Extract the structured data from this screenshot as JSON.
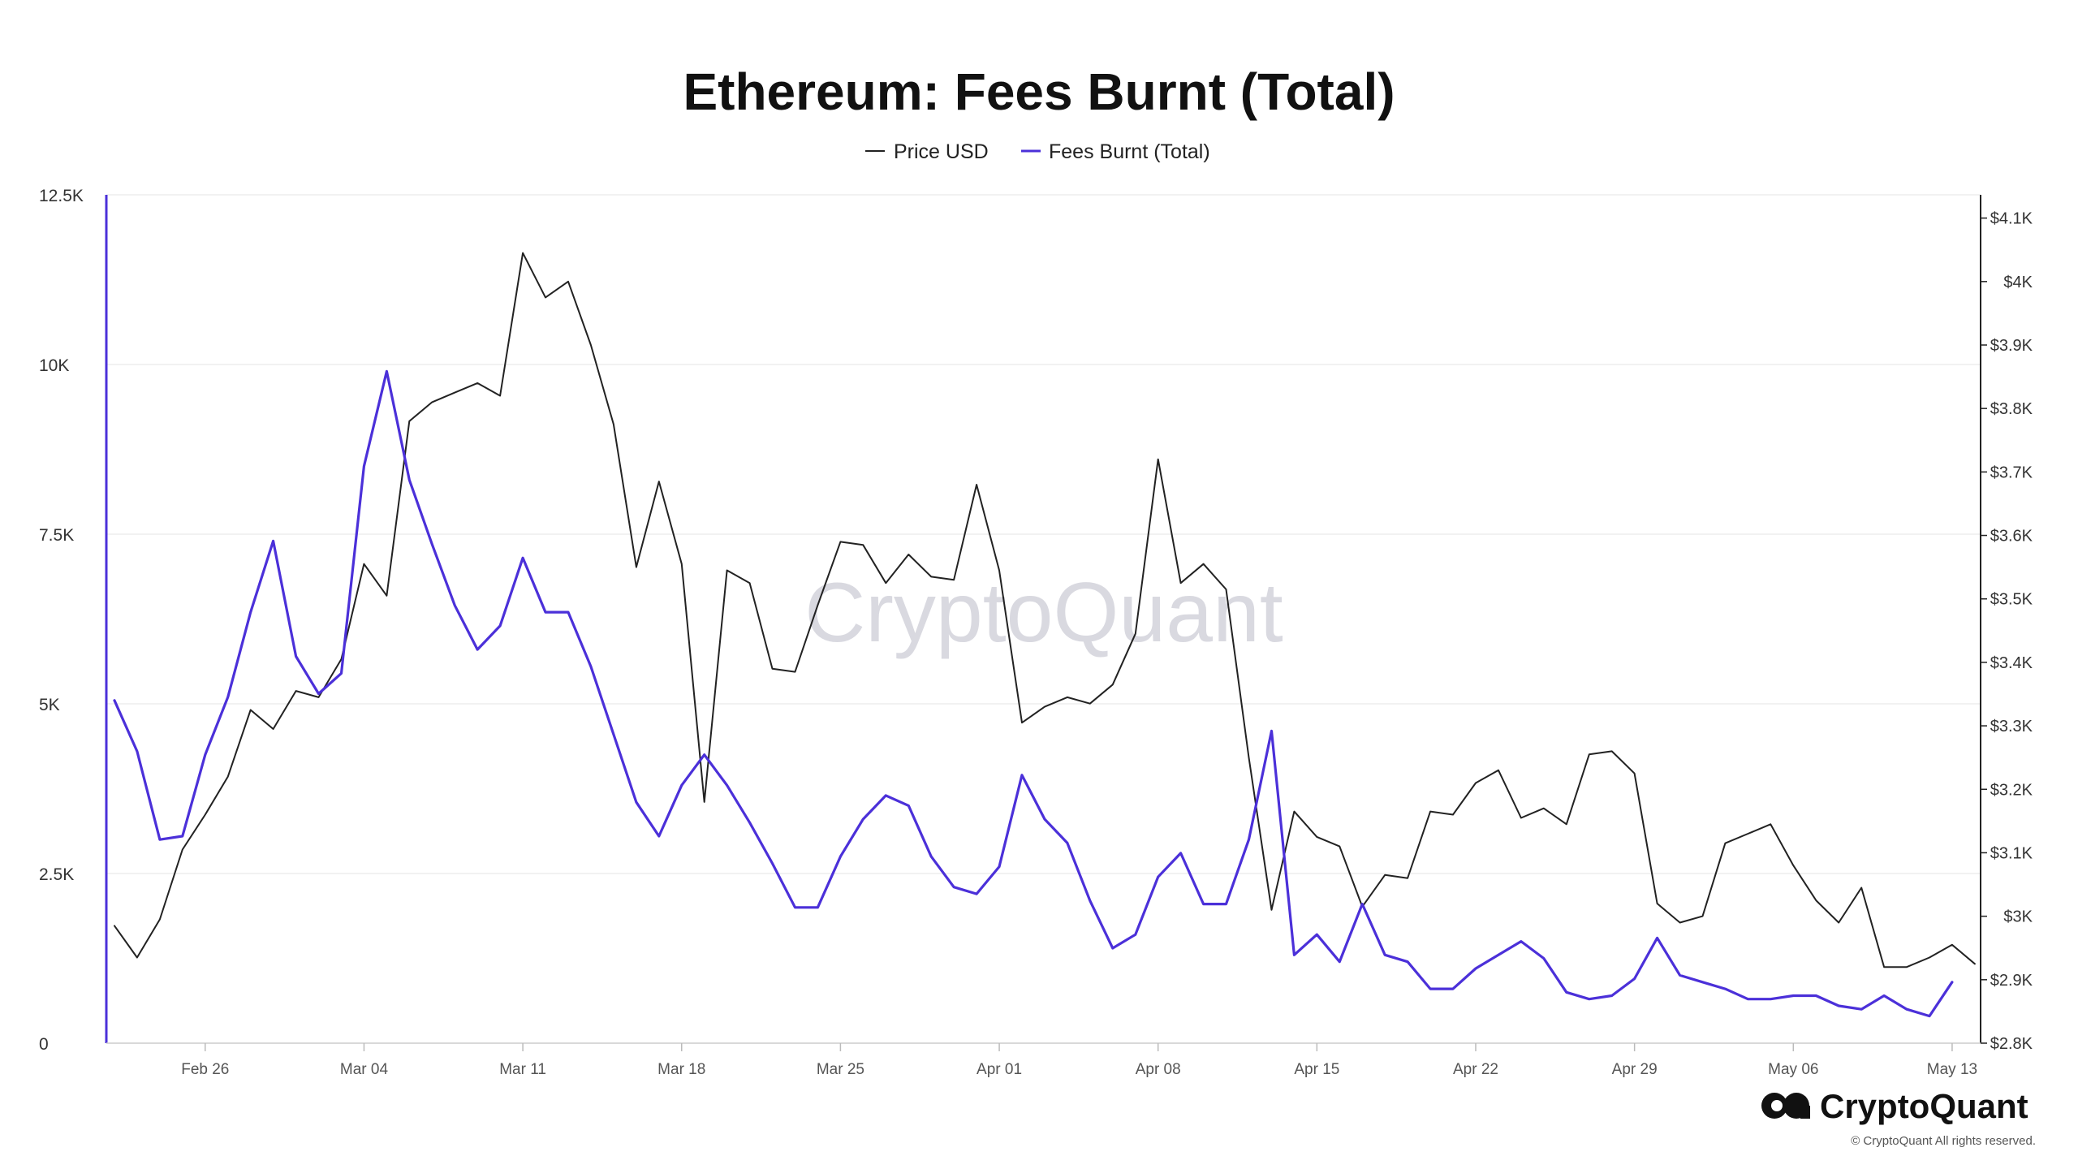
{
  "header": {
    "title": "Ethereum: Fees Burnt (Total)"
  },
  "watermark": "CryptoQuant",
  "brand": {
    "name": "CryptoQuant",
    "copyright": "© CryptoQuant All rights reserved."
  },
  "colors": {
    "price": "#222222",
    "fees": "#4b30d9",
    "grid": "#eeeeee"
  },
  "chart_data": {
    "type": "line",
    "title": "Ethereum: Fees Burnt (Total)",
    "legend": {
      "position": "top-center",
      "entries": [
        "Price USD",
        "Fees Burnt (Total)"
      ]
    },
    "grid": true,
    "x_axis": {
      "ticks": [
        {
          "label": "Feb 26",
          "index": 4
        },
        {
          "label": "Mar 04",
          "index": 11
        },
        {
          "label": "Mar 11",
          "index": 18
        },
        {
          "label": "Mar 18",
          "index": 25
        },
        {
          "label": "Mar 25",
          "index": 32
        },
        {
          "label": "Apr 01",
          "index": 39
        },
        {
          "label": "Apr 08",
          "index": 46
        },
        {
          "label": "Apr 15",
          "index": 53
        },
        {
          "label": "Apr 22",
          "index": 60
        },
        {
          "label": "Apr 29",
          "index": 67
        },
        {
          "label": "May 06",
          "index": 74
        },
        {
          "label": "May 13",
          "index": 81
        }
      ]
    },
    "left_axis": {
      "ylim": [
        0,
        12500
      ],
      "ticks": [
        {
          "label": "0",
          "value": 0
        },
        {
          "label": "2.5K",
          "value": 2500
        },
        {
          "label": "5K",
          "value": 5000
        },
        {
          "label": "7.5K",
          "value": 7500
        },
        {
          "label": "10K",
          "value": 10000
        },
        {
          "label": "12.5K",
          "value": 12500
        }
      ]
    },
    "right_axis": {
      "ylim": [
        2800,
        4120
      ],
      "ticks": [
        {
          "label": "$2.8K",
          "value": 2800
        },
        {
          "label": "$2.9K",
          "value": 2900
        },
        {
          "label": "$3K",
          "value": 3000
        },
        {
          "label": "$3.1K",
          "value": 3100
        },
        {
          "label": "$3.2K",
          "value": 3200
        },
        {
          "label": "$3.3K",
          "value": 3300
        },
        {
          "label": "$3.4K",
          "value": 3400
        },
        {
          "label": "$3.5K",
          "value": 3500
        },
        {
          "label": "$3.6K",
          "value": 3600
        },
        {
          "label": "$3.7K",
          "value": 3700
        },
        {
          "label": "$3.8K",
          "value": 3800
        },
        {
          "label": "$3.9K",
          "value": 3900
        },
        {
          "label": "$4K",
          "value": 4000
        },
        {
          "label": "$4.1K",
          "value": 4100
        }
      ]
    },
    "series": [
      {
        "name": "Price USD",
        "axis": "right",
        "color": "#222222",
        "values": [
          2985,
          2935,
          2995,
          3105,
          3160,
          3220,
          3325,
          3295,
          3355,
          3345,
          3405,
          3555,
          3505,
          3780,
          3810,
          3825,
          3840,
          3820,
          4045,
          3975,
          4000,
          3900,
          3775,
          3550,
          3685,
          3555,
          3180,
          3545,
          3525,
          3390,
          3385,
          3490,
          3590,
          3585,
          3525,
          3570,
          3535,
          3530,
          3680,
          3545,
          3305,
          3330,
          3345,
          3335,
          3365,
          3445,
          3720,
          3525,
          3555,
          3515,
          3250,
          3010,
          3165,
          3125,
          3110,
          3015,
          3065,
          3060,
          3165,
          3160,
          3210,
          3230,
          3155,
          3170,
          3145,
          3255,
          3260,
          3225,
          3020,
          2990,
          3000,
          3115,
          3130,
          3145,
          3080,
          3025,
          2990,
          3045,
          2920,
          2920,
          2935,
          2955,
          2925
        ]
      },
      {
        "name": "Fees Burnt (Total)",
        "axis": "left",
        "color": "#4b30d9",
        "values": [
          5050,
          4300,
          3000,
          3050,
          4250,
          5100,
          6350,
          7400,
          5700,
          5150,
          5450,
          8500,
          9900,
          8300,
          7350,
          6450,
          5800,
          6150,
          7150,
          6350,
          6350,
          5550,
          4550,
          3550,
          3050,
          3800,
          4250,
          3800,
          3250,
          2650,
          2000,
          2000,
          2750,
          3300,
          3650,
          3500,
          2750,
          2300,
          2200,
          2600,
          3950,
          3300,
          2950,
          2100,
          1400,
          1600,
          2450,
          2800,
          2050,
          2050,
          3000,
          4600,
          1300,
          1600,
          1200,
          2050,
          1300,
          1200,
          800,
          800,
          1100,
          1300,
          1500,
          1250,
          750,
          650,
          700,
          950,
          1550,
          1000,
          900,
          800,
          650,
          650,
          700,
          700,
          550,
          500,
          700,
          500,
          400,
          900
        ]
      }
    ]
  }
}
